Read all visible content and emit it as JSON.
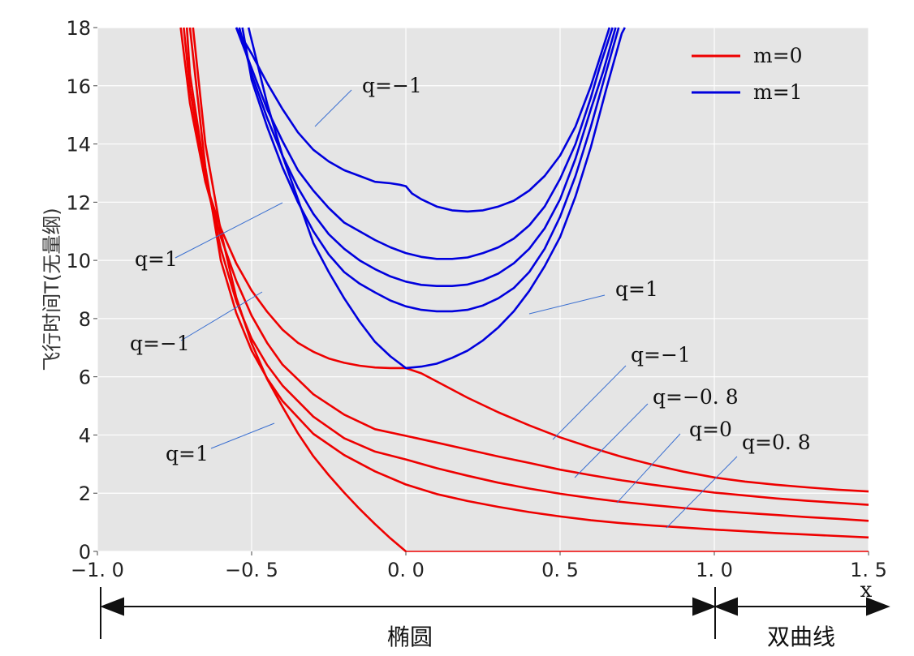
{
  "chart_data": {
    "type": "line",
    "title": "",
    "xlabel": "x",
    "ylabel": "飞行时间T(无量纲)",
    "xlim": [
      -1.0,
      1.5
    ],
    "ylim": [
      0,
      18
    ],
    "x_ticks": [
      -1.0,
      -0.5,
      0.0,
      0.5,
      1.0,
      1.5
    ],
    "x_tick_labels": [
      "−1. 0",
      "−0. 5",
      "0. 0",
      "0. 5",
      "1. 0",
      "1. 5"
    ],
    "y_ticks": [
      0,
      2,
      4,
      6,
      8,
      10,
      12,
      14,
      16,
      18
    ],
    "y_tick_labels": [
      "0",
      "2",
      "4",
      "6",
      "8",
      "10",
      "12",
      "14",
      "16",
      "18"
    ],
    "grid": true,
    "legend_position": "top-right",
    "legend": [
      {
        "label": "m=0",
        "color": "#ee0000"
      },
      {
        "label": "m=1",
        "color": "#0000dd"
      }
    ],
    "series": [
      {
        "group": "m=0",
        "q": -1,
        "x": [
          -0.73,
          -0.7,
          -0.65,
          -0.6,
          -0.55,
          -0.5,
          -0.45,
          -0.4,
          -0.35,
          -0.3,
          -0.25,
          -0.2,
          -0.15,
          -0.1,
          -0.05,
          0.0,
          0.05,
          0.1,
          0.2,
          0.3,
          0.4,
          0.5,
          0.6,
          0.7,
          0.8,
          0.9,
          1.0,
          1.1,
          1.2,
          1.3,
          1.4,
          1.5
        ],
        "y": [
          18.0,
          15.4,
          12.7,
          11.1,
          9.9,
          8.96,
          8.24,
          7.62,
          7.17,
          6.86,
          6.63,
          6.48,
          6.38,
          6.32,
          6.3,
          6.3,
          6.12,
          5.84,
          5.28,
          4.78,
          4.33,
          3.92,
          3.57,
          3.25,
          2.98,
          2.74,
          2.54,
          2.4,
          2.29,
          2.2,
          2.12,
          2.06
        ]
      },
      {
        "group": "m=0",
        "q": -0.8,
        "x": [
          -0.72,
          -0.7,
          -0.65,
          -0.6,
          -0.55,
          -0.5,
          -0.45,
          -0.4,
          -0.3,
          -0.2,
          -0.1,
          0.0,
          0.1,
          0.2,
          0.3,
          0.4,
          0.5,
          0.6,
          0.7,
          0.8,
          0.9,
          1.0,
          1.1,
          1.2,
          1.3,
          1.4,
          1.5
        ],
        "y": [
          18.0,
          15.9,
          12.7,
          10.8,
          9.3,
          8.1,
          7.17,
          6.42,
          5.4,
          4.7,
          4.2,
          3.97,
          3.74,
          3.5,
          3.26,
          3.04,
          2.81,
          2.62,
          2.44,
          2.29,
          2.15,
          2.02,
          1.92,
          1.82,
          1.74,
          1.67,
          1.6
        ]
      },
      {
        "group": "m=0",
        "q": 0,
        "x": [
          -0.71,
          -0.7,
          -0.65,
          -0.6,
          -0.55,
          -0.5,
          -0.45,
          -0.4,
          -0.3,
          -0.2,
          -0.1,
          0.0,
          0.1,
          0.2,
          0.3,
          0.4,
          0.5,
          0.6,
          0.7,
          0.8,
          0.9,
          1.0,
          1.1,
          1.2,
          1.3,
          1.4,
          1.5
        ],
        "y": [
          18.0,
          16.4,
          12.9,
          10.4,
          8.6,
          7.31,
          6.41,
          5.7,
          4.63,
          3.89,
          3.43,
          3.16,
          2.86,
          2.6,
          2.36,
          2.16,
          1.98,
          1.83,
          1.7,
          1.59,
          1.49,
          1.4,
          1.32,
          1.25,
          1.18,
          1.12,
          1.05
        ]
      },
      {
        "group": "m=0",
        "q": 0.8,
        "x": [
          -0.7,
          -0.65,
          -0.6,
          -0.55,
          -0.5,
          -0.45,
          -0.4,
          -0.3,
          -0.2,
          -0.1,
          0.0,
          0.1,
          0.2,
          0.3,
          0.4,
          0.5,
          0.6,
          0.7,
          0.8,
          0.9,
          1.0,
          1.1,
          1.2,
          1.3,
          1.4,
          1.5
        ],
        "y": [
          18.0,
          13.2,
          10.0,
          8.2,
          6.9,
          5.95,
          5.17,
          4.04,
          3.31,
          2.75,
          2.3,
          1.97,
          1.73,
          1.53,
          1.35,
          1.2,
          1.07,
          0.97,
          0.89,
          0.82,
          0.75,
          0.69,
          0.63,
          0.58,
          0.53,
          0.48
        ]
      },
      {
        "group": "m=0",
        "q": 1,
        "x": [
          -0.69,
          -0.65,
          -0.6,
          -0.55,
          -0.5,
          -0.45,
          -0.4,
          -0.35,
          -0.3,
          -0.25,
          -0.2,
          -0.15,
          -0.1,
          -0.05,
          0.0
        ],
        "y": [
          18.0,
          14.0,
          11.0,
          8.73,
          7.15,
          5.93,
          4.97,
          4.06,
          3.27,
          2.62,
          2.02,
          1.46,
          0.94,
          0.45,
          0.0
        ]
      },
      {
        "group": "m=0",
        "q": 1,
        "x": [
          0.0,
          1.5
        ],
        "y": [
          0.0,
          0.0
        ]
      },
      {
        "group": "m=1",
        "q": -1,
        "x": [
          -0.55,
          -0.5,
          -0.45,
          -0.4,
          -0.35,
          -0.3,
          -0.25,
          -0.2,
          -0.15,
          -0.1,
          -0.05,
          -0.02,
          0.0,
          0.02,
          0.05,
          0.1,
          0.15,
          0.2,
          0.25,
          0.3,
          0.35,
          0.4,
          0.45,
          0.5,
          0.55,
          0.6,
          0.63,
          0.66
        ],
        "y": [
          18.0,
          17.1,
          16.1,
          15.2,
          14.4,
          13.8,
          13.4,
          13.1,
          12.9,
          12.7,
          12.65,
          12.6,
          12.55,
          12.3,
          12.1,
          11.85,
          11.72,
          11.68,
          11.72,
          11.85,
          12.05,
          12.4,
          12.9,
          13.6,
          14.6,
          16.0,
          17.0,
          18.0
        ]
      },
      {
        "group": "m=1",
        "q": null,
        "x": [
          -0.55,
          -0.5,
          -0.45,
          -0.4,
          -0.35,
          -0.3,
          -0.25,
          -0.2,
          -0.15,
          -0.1,
          -0.05,
          0.0,
          0.05,
          0.1,
          0.15,
          0.2,
          0.25,
          0.3,
          0.35,
          0.4,
          0.45,
          0.5,
          0.55,
          0.6,
          0.63,
          0.67
        ],
        "y": [
          18.0,
          16.6,
          15.2,
          14.1,
          13.1,
          12.4,
          11.8,
          11.3,
          11.0,
          10.7,
          10.45,
          10.25,
          10.12,
          10.05,
          10.05,
          10.1,
          10.25,
          10.45,
          10.75,
          11.2,
          11.85,
          12.8,
          14.0,
          15.6,
          16.7,
          18.0
        ]
      },
      {
        "group": "m=1",
        "q": null,
        "x": [
          -0.54,
          -0.5,
          -0.45,
          -0.4,
          -0.35,
          -0.3,
          -0.25,
          -0.2,
          -0.15,
          -0.1,
          -0.05,
          0.0,
          0.05,
          0.1,
          0.15,
          0.2,
          0.25,
          0.3,
          0.35,
          0.4,
          0.45,
          0.5,
          0.55,
          0.6,
          0.64,
          0.68
        ],
        "y": [
          18.0,
          16.4,
          14.9,
          13.6,
          12.5,
          11.6,
          10.9,
          10.4,
          10.0,
          9.7,
          9.45,
          9.27,
          9.16,
          9.12,
          9.12,
          9.17,
          9.32,
          9.55,
          9.9,
          10.4,
          11.1,
          12.1,
          13.5,
          15.2,
          16.5,
          18.0
        ]
      },
      {
        "group": "m=1",
        "q": null,
        "x": [
          -0.53,
          -0.5,
          -0.45,
          -0.4,
          -0.35,
          -0.3,
          -0.25,
          -0.2,
          -0.15,
          -0.1,
          -0.05,
          0.0,
          0.05,
          0.1,
          0.15,
          0.2,
          0.25,
          0.3,
          0.35,
          0.4,
          0.45,
          0.5,
          0.55,
          0.6,
          0.65,
          0.69
        ],
        "y": [
          18.0,
          16.2,
          14.6,
          13.2,
          12.0,
          11.0,
          10.2,
          9.6,
          9.2,
          8.9,
          8.62,
          8.42,
          8.3,
          8.25,
          8.25,
          8.3,
          8.45,
          8.7,
          9.05,
          9.6,
          10.4,
          11.5,
          12.9,
          14.6,
          16.5,
          18.0
        ]
      },
      {
        "group": "m=1",
        "q": 1,
        "x": [
          -0.51,
          -0.45,
          -0.4,
          -0.35,
          -0.3,
          -0.25,
          -0.2,
          -0.15,
          -0.1,
          -0.05,
          0.0,
          0.05,
          0.1,
          0.15,
          0.2,
          0.25,
          0.3,
          0.35,
          0.4,
          0.45,
          0.5,
          0.55,
          0.6,
          0.65,
          0.7,
          0.71
        ],
        "y": [
          18.0,
          15.4,
          13.6,
          12.1,
          10.6,
          9.6,
          8.7,
          7.9,
          7.2,
          6.7,
          6.3,
          6.35,
          6.45,
          6.65,
          6.9,
          7.25,
          7.7,
          8.25,
          8.95,
          9.8,
          10.8,
          12.2,
          13.9,
          15.9,
          17.8,
          18.0
        ]
      }
    ],
    "annotations": [
      {
        "text": "q=−1",
        "series_group": "m=1"
      },
      {
        "text": "q=1",
        "series_group": "m=1"
      },
      {
        "text": "q=−1",
        "series_group": "m=0"
      },
      {
        "text": "q=1",
        "series_group": "m=0"
      },
      {
        "text": "q=1",
        "series_group": "m=1"
      },
      {
        "text": "q=−1",
        "series_group": "m=0"
      },
      {
        "text": "q=−0. 8",
        "series_group": "m=0"
      },
      {
        "text": "q=0",
        "series_group": "m=0"
      },
      {
        "text": "q=0. 8",
        "series_group": "m=0"
      }
    ],
    "regions": [
      {
        "label": "椭圆",
        "x_from": -1.0,
        "x_to": 1.0
      },
      {
        "label": "双曲线",
        "x_from": 1.0,
        "x_to": 1.5
      }
    ],
    "colors": {
      "m0": "#ee0000",
      "m1": "#0000dd",
      "annotation_line": "#3a6fd0",
      "plot_bg": "#e5e5e5",
      "grid": "#ffffff"
    }
  }
}
